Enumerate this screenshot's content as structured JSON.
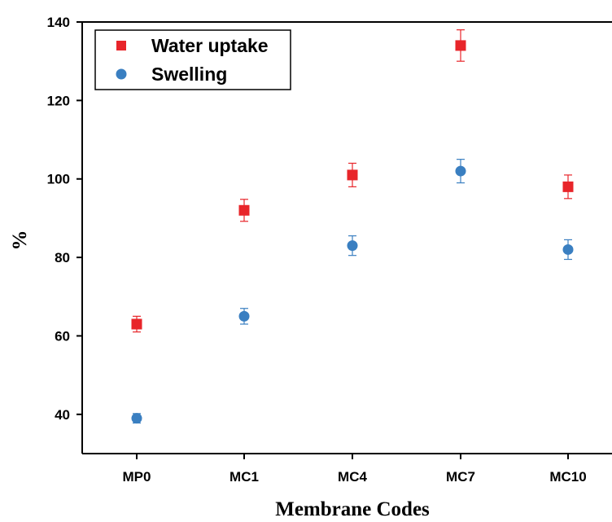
{
  "chart_data": {
    "type": "scatter",
    "categories": [
      "MP0",
      "MC1",
      "MC4",
      "MC7",
      "MC10"
    ],
    "series": [
      {
        "name": "Water uptake",
        "marker": "square",
        "color": "#e8252a",
        "values": [
          63,
          92,
          101,
          134,
          98
        ],
        "errors": [
          2,
          2.8,
          3,
          4,
          3
        ]
      },
      {
        "name": "Swelling",
        "marker": "circle",
        "color": "#3a7fc1",
        "values": [
          39,
          65,
          83,
          102,
          82
        ],
        "errors": [
          1.2,
          2,
          2.5,
          3,
          2.5
        ]
      }
    ],
    "xlabel": "Membrane Codes",
    "ylabel": "%",
    "ylim": [
      30,
      140
    ],
    "yticks": [
      40,
      60,
      80,
      100,
      120,
      140
    ],
    "grid": false,
    "legend_position": "top-left"
  }
}
